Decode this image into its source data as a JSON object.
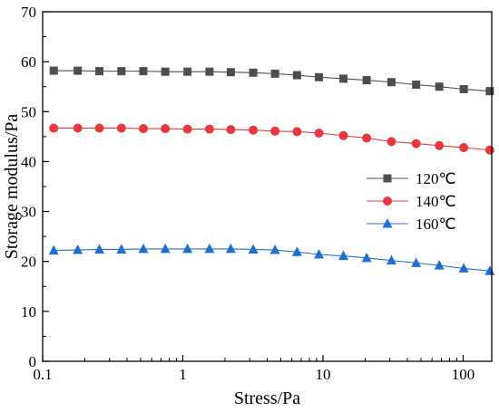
{
  "chart_data": {
    "type": "line",
    "xlabel": "Stress/Pa",
    "ylabel": "Storage modulus/Pa",
    "xscale": "log",
    "xlim": [
      0.1,
      160
    ],
    "ylim": [
      0,
      70
    ],
    "x_ticks": [
      0.1,
      1,
      10,
      100
    ],
    "x_tick_labels": [
      "0.1",
      "1",
      "10",
      "100"
    ],
    "y_ticks": [
      0,
      10,
      20,
      30,
      40,
      50,
      60,
      70
    ],
    "y_tick_labels": [
      "0",
      "10",
      "20",
      "30",
      "40",
      "50",
      "60",
      "70"
    ],
    "grid": false,
    "legend_position": "right",
    "x": [
      0.12,
      0.178,
      0.254,
      0.365,
      0.523,
      0.75,
      1.08,
      1.55,
      2.2,
      3.18,
      4.55,
      6.53,
      9.36,
      14.0,
      20.5,
      30.8,
      46.2,
      67.6,
      101,
      155
    ],
    "series": [
      {
        "name": "120℃",
        "color": "#4d4d4d",
        "marker": "square",
        "values": [
          58.2,
          58.2,
          58.1,
          58.1,
          58.1,
          58.0,
          58.0,
          58.0,
          57.9,
          57.8,
          57.6,
          57.3,
          56.9,
          56.6,
          56.3,
          55.9,
          55.4,
          55.0,
          54.5,
          54.1
        ]
      },
      {
        "name": "140℃",
        "color": "#e8383d",
        "marker": "circle",
        "values": [
          46.7,
          46.7,
          46.7,
          46.7,
          46.6,
          46.6,
          46.5,
          46.5,
          46.4,
          46.3,
          46.1,
          46.0,
          45.7,
          45.2,
          44.7,
          44.0,
          43.6,
          43.2,
          42.8,
          42.3
        ]
      },
      {
        "name": "160℃",
        "color": "#1f6fd1",
        "marker": "triangle",
        "values": [
          22.2,
          22.3,
          22.4,
          22.4,
          22.5,
          22.5,
          22.5,
          22.5,
          22.5,
          22.4,
          22.3,
          21.9,
          21.4,
          21.1,
          20.7,
          20.2,
          19.7,
          19.2,
          18.6,
          18.1
        ]
      }
    ]
  }
}
